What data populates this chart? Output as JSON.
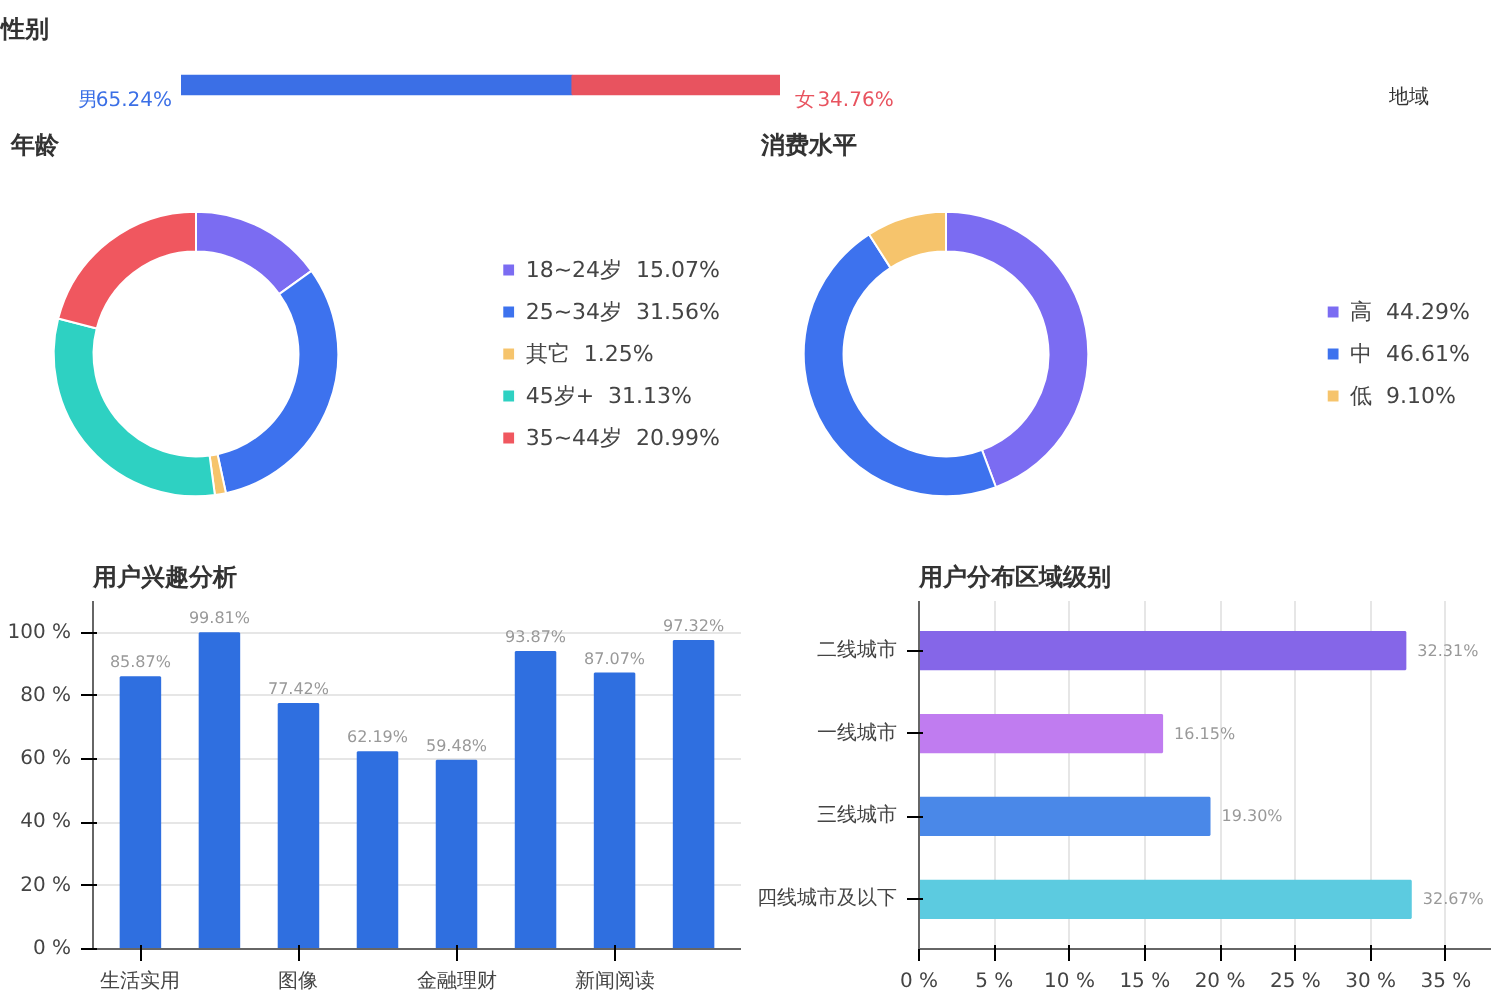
{
  "chart_data": [
    {
      "type": "bar",
      "title": "性别",
      "orientation": "horizontal",
      "stacked": true,
      "categories": [
        null
      ],
      "tick_labels": false,
      "grid": false,
      "legend": false,
      "annotations": [
        "地域"
      ],
      "series": [
        {
          "name": "男",
          "color": "#3b6fe6",
          "values": [
            65.24
          ],
          "value_labels": [
            "65.24%"
          ]
        },
        {
          "name": "女",
          "color": "#e8535f",
          "values": [
            34.76
          ],
          "value_labels": [
            "34.76%"
          ]
        }
      ]
    },
    {
      "type": "donut",
      "title": "年龄",
      "legend": "right",
      "categories": [
        "18~24岁",
        "25~34岁",
        "其它",
        "45岁+",
        "35~44岁"
      ],
      "values": [
        15.07,
        31.56,
        1.25,
        31.13,
        20.99
      ],
      "value_labels": [
        "15.07%",
        "31.56%",
        "1.25%",
        "31.13%",
        "20.99%"
      ],
      "colors": [
        "#7b6cf2",
        "#3d72ee",
        "#f6c46c",
        "#2ed1c2",
        "#f0575f"
      ]
    },
    {
      "type": "donut",
      "title": "消费水平",
      "legend": "right",
      "categories": [
        "高",
        "中",
        "低"
      ],
      "values": [
        44.29,
        46.61,
        9.1
      ],
      "value_labels": [
        "44.29%",
        "46.61%",
        "9.10%"
      ],
      "colors": [
        "#7b6cf2",
        "#3d72ee",
        "#f6c46c"
      ]
    },
    {
      "type": "bar",
      "title": "用户兴趣分析",
      "categories": [
        "生活实用",
        null,
        "图像",
        null,
        "金融理财",
        null,
        "新闻阅读",
        null
      ],
      "values": [
        85.87,
        99.81,
        77.42,
        62.19,
        59.48,
        93.87,
        87.07,
        97.32
      ],
      "value_labels": [
        "85.87%",
        "99.81%",
        "77.42%",
        "62.19%",
        "59.48%",
        "93.87%",
        "87.07%",
        "97.32%"
      ],
      "color": "#2f6fe0",
      "ylim": [
        0,
        110
      ],
      "yticks": [
        {
          "value": 0,
          "label": "0 %"
        },
        {
          "value": 20,
          "label": "20 %"
        },
        {
          "value": 40,
          "label": "40 %"
        },
        {
          "value": 60,
          "label": "60 %"
        },
        {
          "value": 80,
          "label": "80 %"
        },
        {
          "value": 100,
          "label": "100 %"
        }
      ],
      "grid": "y",
      "legend": false
    },
    {
      "type": "bar",
      "title": "用户分布区域级别",
      "orientation": "horizontal",
      "categories": [
        "二线城市",
        "一线城市",
        "三线城市",
        "四线城市及以下"
      ],
      "values": [
        32.31,
        16.15,
        19.3,
        32.67
      ],
      "value_labels": [
        "32.31%",
        "16.15%",
        "19.30%",
        "32.67%"
      ],
      "colors": [
        "#8566e8",
        "#c07cf0",
        "#4a88e8",
        "#5ccbe0"
      ],
      "xlim": [
        0,
        38
      ],
      "xticks": [
        {
          "value": 0,
          "label": "0 %"
        },
        {
          "value": 5,
          "label": "5 %"
        },
        {
          "value": 10,
          "label": "10 %"
        },
        {
          "value": 15,
          "label": "15 %"
        },
        {
          "value": 20,
          "label": "20 %"
        },
        {
          "value": 25,
          "label": "25 %"
        },
        {
          "value": 30,
          "label": "30 %"
        },
        {
          "value": 35,
          "label": "35 %"
        }
      ],
      "grid": "x",
      "legend": false
    }
  ]
}
